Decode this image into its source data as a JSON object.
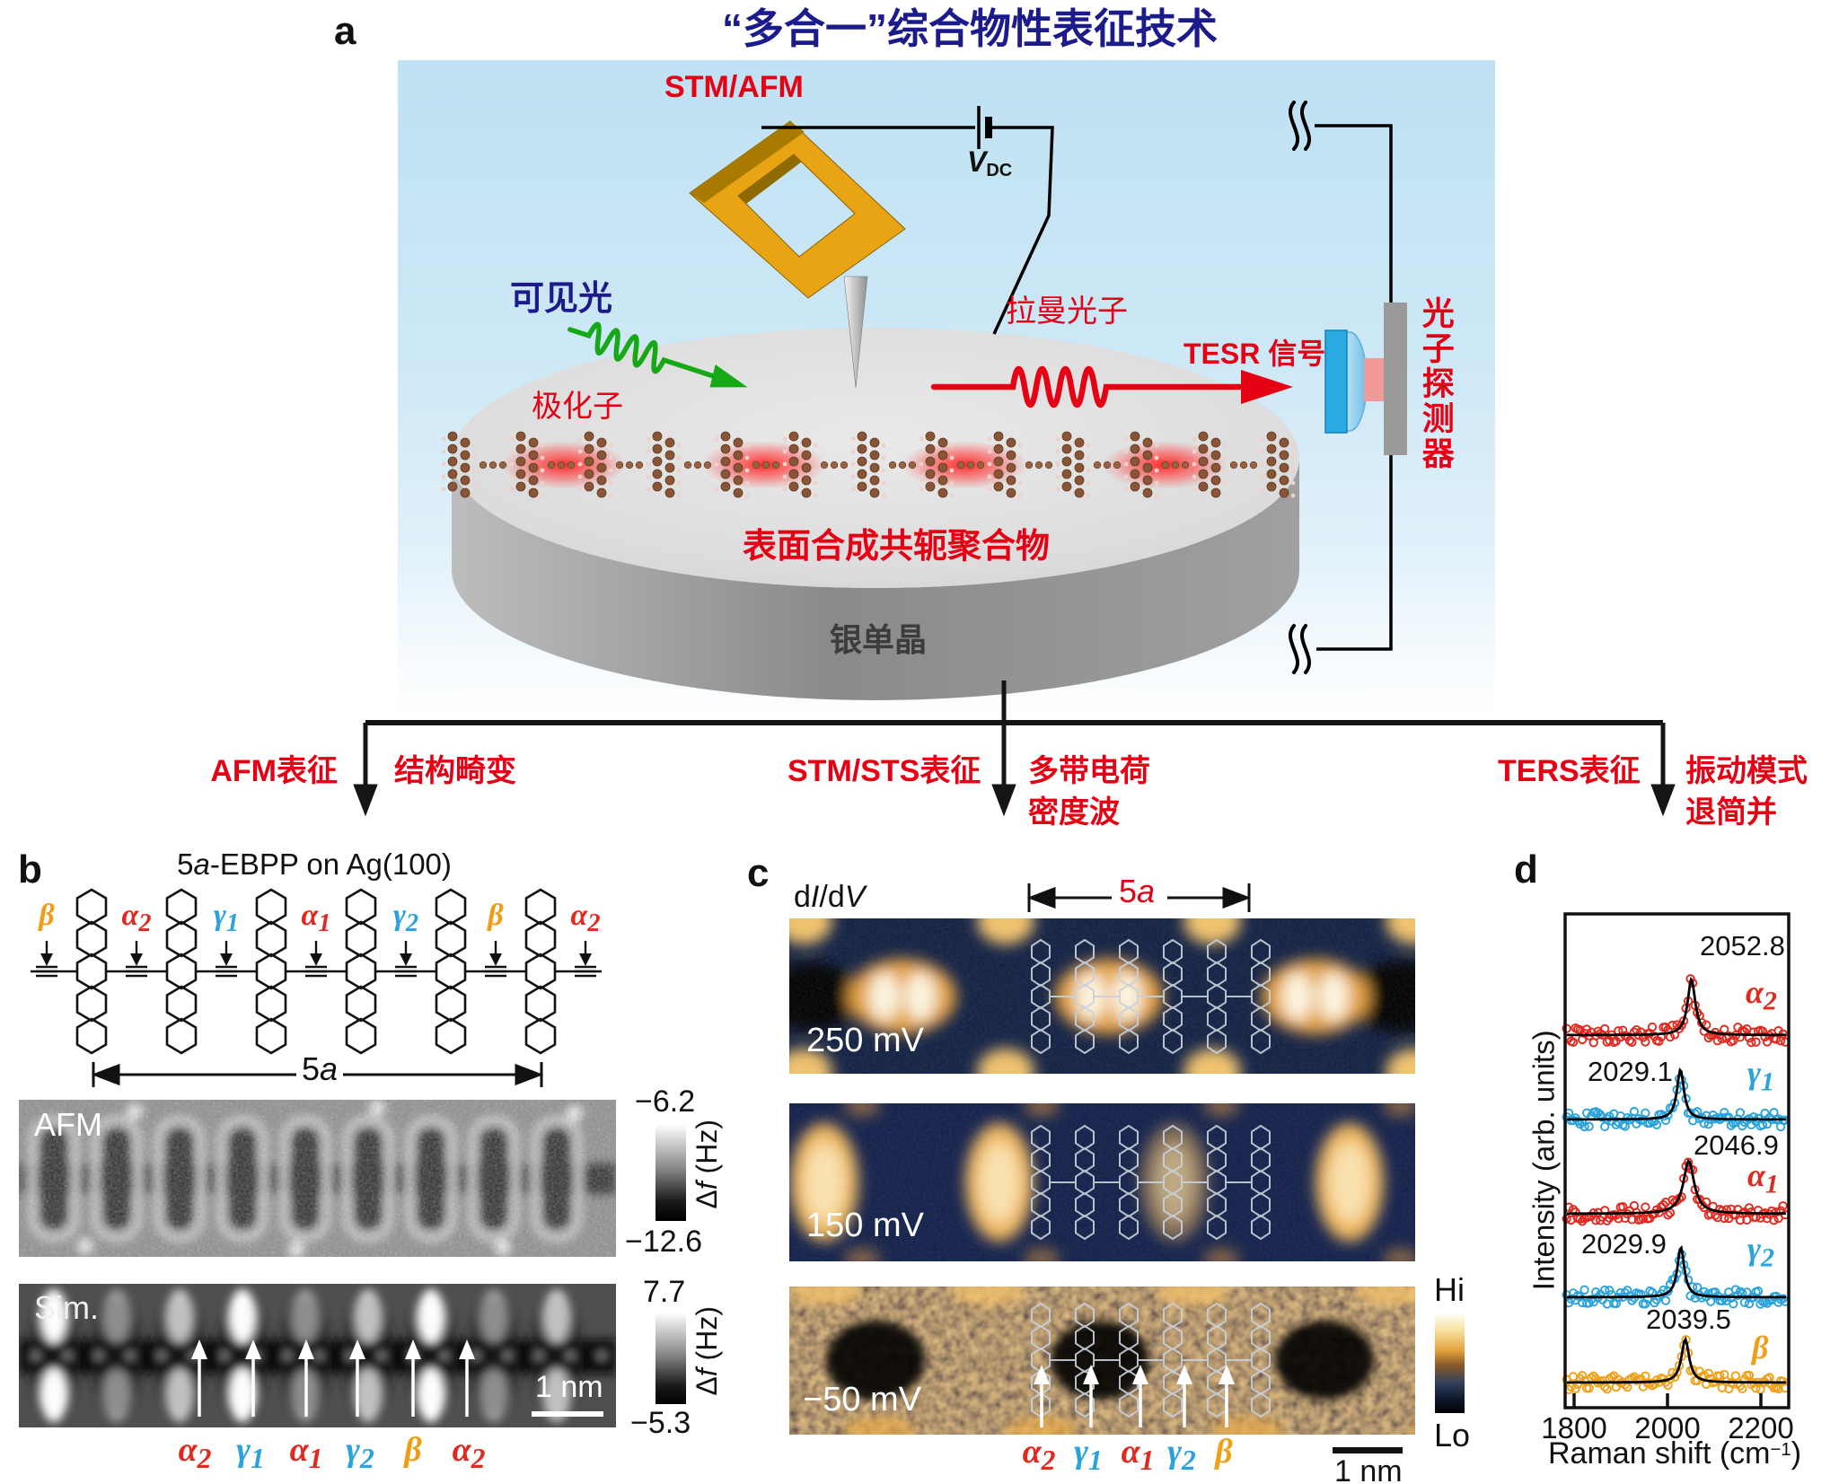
{
  "panel_a": {
    "label": "a",
    "title": "“多合一”综合物性表征技术",
    "stm_afm": "STM/AFM",
    "vdc_v": "V",
    "vdc_sub": "DC",
    "visible_light": "可见光",
    "polaron": "极化子",
    "raman_photon": "拉曼光子",
    "tesr_signal": "TESR 信号",
    "photon_detector": "光子探测器",
    "polymer": "表面合成共轭聚合物",
    "silver_crystal": "银单晶"
  },
  "branches": [
    {
      "method": "AFM表征",
      "line1": "结构畸变",
      "line2": ""
    },
    {
      "method": "STM/STS表征",
      "line1": "多带电荷",
      "line2": "密度波"
    },
    {
      "method": "TERS表征",
      "line1": "振动模式",
      "line2": "退简并"
    }
  ],
  "panel_b": {
    "label": "b",
    "title": {
      "p1": "5",
      "p2": "a",
      "p3": "-EBPP on Ag(100)"
    },
    "bond_labels": [
      {
        "g": "β",
        "s": "",
        "color": "#f09c14"
      },
      {
        "g": "α",
        "s": "2",
        "color": "#e02a20"
      },
      {
        "g": "γ",
        "s": "1",
        "color": "#2aa3dc"
      },
      {
        "g": "α",
        "s": "1",
        "color": "#e02a20"
      },
      {
        "g": "γ",
        "s": "2",
        "color": "#2aa3dc"
      },
      {
        "g": "β",
        "s": "",
        "color": "#f09c14"
      },
      {
        "g": "α",
        "s": "2",
        "color": "#e02a20"
      }
    ],
    "span_label": {
      "p1": "5",
      "p2": "a"
    },
    "afm": {
      "label": "AFM",
      "cb_top": "−6.2",
      "cb_bottom": "−12.6",
      "cb_axis": {
        "d": "Δ",
        "f": "f",
        "rest": " (Hz)"
      }
    },
    "sim": {
      "label": "Sim.",
      "cb_top": "7.7",
      "cb_bottom": "−5.3",
      "cb_axis": {
        "d": "Δ",
        "f": "f",
        "rest": " (Hz)"
      },
      "scalebar": "1 nm"
    },
    "bottom_labels": [
      {
        "g": "α",
        "s": "2",
        "color": "#e02a20"
      },
      {
        "g": "γ",
        "s": "1",
        "color": "#2aa3dc"
      },
      {
        "g": "α",
        "s": "1",
        "color": "#e02a20"
      },
      {
        "g": "γ",
        "s": "2",
        "color": "#2aa3dc"
      },
      {
        "g": "β",
        "s": "",
        "color": "#f09c14"
      },
      {
        "g": "α",
        "s": "2",
        "color": "#e02a20"
      }
    ]
  },
  "panel_c": {
    "label": "c",
    "map_label": {
      "p1": "d",
      "p2": "I",
      "p3": "/d",
      "p4": "V"
    },
    "span_label": {
      "p1": "5",
      "p2": "a"
    },
    "biases": [
      "250 mV",
      "150 mV",
      "−50 mV"
    ],
    "hi": "Hi",
    "lo": "Lo",
    "scalebar": "1 nm",
    "bottom_labels": [
      {
        "g": "α",
        "s": "2",
        "color": "#e02a20"
      },
      {
        "g": "γ",
        "s": "1",
        "color": "#2aa3dc"
      },
      {
        "g": "α",
        "s": "1",
        "color": "#e02a20"
      },
      {
        "g": "γ",
        "s": "2",
        "color": "#2aa3dc"
      },
      {
        "g": "β",
        "s": "",
        "color": "#f0a018"
      }
    ]
  },
  "panel_d": {
    "label": "d"
  },
  "chart_data": {
    "type": "scatter",
    "title": "",
    "xlabel_parts": {
      "pre": "Raman shift (cm",
      "sup": "−1",
      "post": ")"
    },
    "ylabel": "Intensity (arb. units)",
    "xticks": [
      "1800",
      "2000",
      "2200"
    ],
    "xtick_values": [
      1800,
      2000,
      2200
    ],
    "xlim": [
      1781,
      2262
    ],
    "grid": false,
    "legend": false,
    "fit_color": "#000000",
    "series": [
      {
        "name": "α",
        "sub": "2",
        "color": "#e02a20",
        "peak_label": "2052.8",
        "peak_center": 2052.8,
        "gamma": 10,
        "amplitude": 1.0
      },
      {
        "name": "γ",
        "sub": "1",
        "color": "#2aa3dc",
        "peak_label": "2029.1",
        "peak_center": 2029.1,
        "gamma": 9,
        "amplitude": 0.9
      },
      {
        "name": "α",
        "sub": "1",
        "color": "#e02a20",
        "peak_label": "2046.9",
        "peak_center": 2046.9,
        "gamma": 14,
        "amplitude": 0.95
      },
      {
        "name": "γ",
        "sub": "2",
        "color": "#2aa3dc",
        "peak_label": "2029.9",
        "peak_center": 2029.9,
        "gamma": 9,
        "amplitude": 0.9
      },
      {
        "name": "β",
        "sub": "",
        "color": "#f0a018",
        "peak_label": "2039.5",
        "peak_center": 2039.5,
        "gamma": 10,
        "amplitude": 0.78
      }
    ]
  }
}
